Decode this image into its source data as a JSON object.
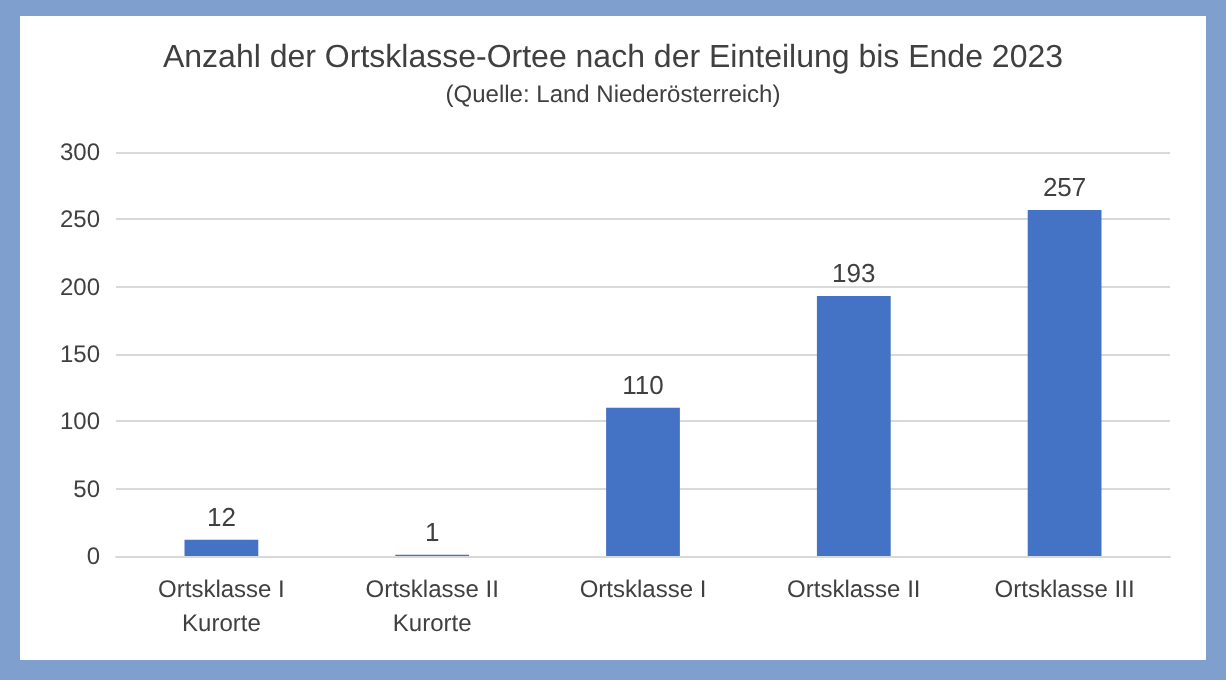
{
  "chart_data": {
    "type": "bar",
    "title": "Anzahl der Ortsklasse-Ortee nach der Einteilung bis Ende 2023",
    "subtitle": "(Quelle: Land Niederösterreich)",
    "categories": [
      "Ortsklasse I\nKurorte",
      "Ortsklasse II\nKurorte",
      "Ortsklasse I",
      "Ortsklasse II",
      "Ortsklasse III"
    ],
    "values": [
      12,
      1,
      110,
      193,
      257
    ],
    "color": "#4472c4",
    "ylim": [
      0,
      300
    ],
    "yticks": [
      0,
      50,
      100,
      150,
      200,
      250,
      300
    ],
    "grid": "y",
    "data_labels": true
  }
}
